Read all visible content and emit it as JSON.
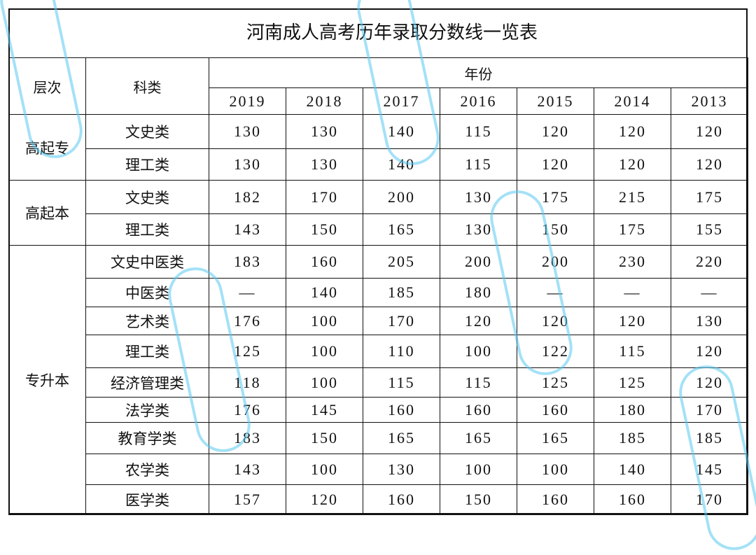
{
  "title": "河南成人高考历年录取分数线一览表",
  "headers": {
    "level": "层次",
    "category": "科类",
    "year": "年份",
    "years": [
      "2019",
      "2018",
      "2017",
      "2016",
      "2015",
      "2014",
      "2013"
    ]
  },
  "groups": [
    {
      "level": "高起专",
      "rows": [
        {
          "category": "文史类",
          "scores": [
            "130",
            "130",
            "140",
            "115",
            "120",
            "120",
            "120"
          ]
        },
        {
          "category": "理工类",
          "scores": [
            "130",
            "130",
            "140",
            "115",
            "120",
            "120",
            "120"
          ]
        }
      ]
    },
    {
      "level": "高起本",
      "rows": [
        {
          "category": "文史类",
          "scores": [
            "182",
            "170",
            "200",
            "130",
            "175",
            "215",
            "175"
          ]
        },
        {
          "category": "理工类",
          "scores": [
            "143",
            "150",
            "165",
            "130",
            "150",
            "175",
            "155"
          ]
        }
      ]
    },
    {
      "level": "专升本",
      "rows": [
        {
          "category": "文史中医类",
          "scores": [
            "183",
            "160",
            "205",
            "200",
            "200",
            "230",
            "220"
          ]
        },
        {
          "category": "中医类",
          "scores": [
            "—",
            "140",
            "185",
            "180",
            "—",
            "—",
            "—"
          ]
        },
        {
          "category": "艺术类",
          "scores": [
            "176",
            "100",
            "170",
            "120",
            "120",
            "120",
            "130"
          ]
        },
        {
          "category": "理工类",
          "scores": [
            "125",
            "100",
            "110",
            "100",
            "122",
            "115",
            "120"
          ]
        },
        {
          "category": "经济管理类",
          "scores": [
            "118",
            "100",
            "115",
            "115",
            "125",
            "125",
            "120"
          ]
        },
        {
          "category": "法学类",
          "scores": [
            "176",
            "145",
            "160",
            "160",
            "160",
            "180",
            "170"
          ]
        },
        {
          "category": "教育学类",
          "scores": [
            "183",
            "150",
            "165",
            "165",
            "165",
            "185",
            "185"
          ]
        },
        {
          "category": "农学类",
          "scores": [
            "143",
            "100",
            "130",
            "100",
            "100",
            "140",
            "145"
          ]
        },
        {
          "category": "医学类",
          "scores": [
            "157",
            "120",
            "160",
            "150",
            "160",
            "160",
            "170"
          ]
        }
      ]
    }
  ],
  "watermark_color": "#5ac8f0"
}
